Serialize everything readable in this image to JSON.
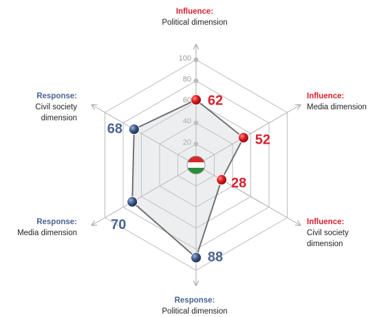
{
  "chart_data": {
    "type": "radar",
    "axes": [
      {
        "heading": "Influence:",
        "name": "Political dimension",
        "value": 62,
        "color": "#d7202e"
      },
      {
        "heading": "Influence:",
        "name": "Media dimension",
        "value": 52,
        "color": "#d7202e"
      },
      {
        "heading": "Influence:",
        "name": "Civil society dimension",
        "value": 28,
        "color": "#d7202e"
      },
      {
        "heading": "Response:",
        "name": "Political dimension",
        "value": 88,
        "color": "#4a6391"
      },
      {
        "heading": "Response:",
        "name": "Media dimension",
        "value": 70,
        "color": "#4a6391"
      },
      {
        "heading": "Response:",
        "name": "Civil society dimension",
        "value": 68,
        "color": "#4a6391"
      }
    ],
    "rlim": [
      0,
      100
    ],
    "rticks": [
      0,
      20,
      40,
      60,
      80,
      100
    ],
    "grid": true
  }
}
